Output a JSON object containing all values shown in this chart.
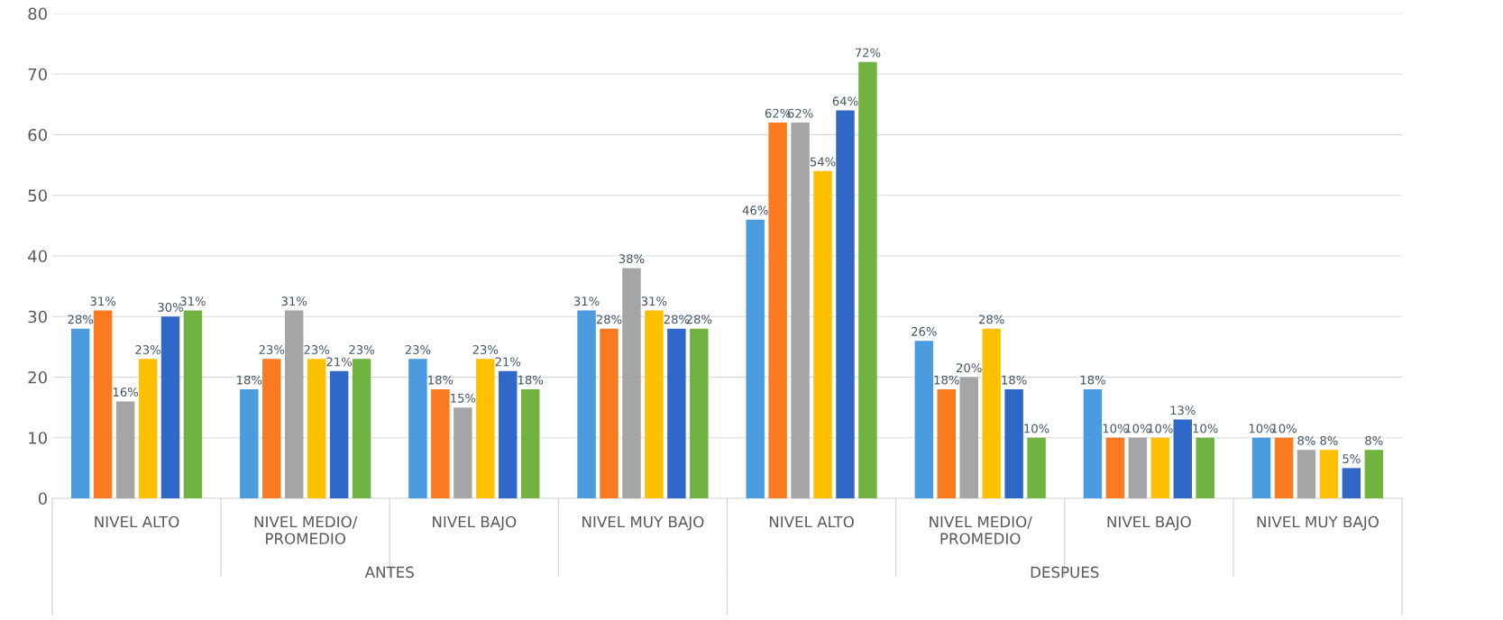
{
  "chart_data": {
    "type": "bar",
    "categories": [
      "NIVEL ALTO",
      "NIVEL MEDIO/\nPROMEDIO",
      "NIVEL BAJO",
      "NIVEL MUY BAJO",
      "NIVEL ALTO",
      "NIVEL MEDIO/\nPROMEDIO",
      "NIVEL BAJO",
      "NIVEL MUY BAJO"
    ],
    "series": [
      {
        "color": "#4a9be0",
        "values": [
          28,
          18,
          23,
          31,
          46,
          26,
          18,
          10
        ],
        "value_labels": [
          "28%",
          "18%",
          "23%",
          "31%",
          "46%",
          "26%",
          "18%",
          "10%"
        ]
      },
      {
        "color": "#f97a1f",
        "values": [
          31,
          23,
          18,
          28,
          62,
          18,
          10,
          10
        ],
        "value_labels": [
          "31%",
          "23%",
          "18%",
          "28%",
          "62%",
          "18%",
          "10%",
          "10%"
        ]
      },
      {
        "color": "#a5a5a5",
        "values": [
          16,
          31,
          15,
          38,
          62,
          20,
          10,
          8
        ],
        "value_labels": [
          "16%",
          "31%",
          "15%",
          "38%",
          "62%",
          "20%",
          "10%",
          "8%"
        ]
      },
      {
        "color": "#ffc000",
        "values": [
          23,
          23,
          23,
          31,
          54,
          28,
          10,
          8
        ],
        "value_labels": [
          "23%",
          "23%",
          "23%",
          "31%",
          "54%",
          "28%",
          "10%",
          "8%"
        ]
      },
      {
        "color": "#3068c8",
        "values": [
          30,
          21,
          21,
          28,
          64,
          18,
          13,
          5
        ],
        "value_labels": [
          "30%",
          "21%",
          "21%",
          "28%",
          "64%",
          "18%",
          "13%",
          "5%"
        ]
      },
      {
        "color": "#70b340",
        "values": [
          31,
          23,
          18,
          28,
          72,
          10,
          10,
          8
        ],
        "value_labels": [
          "31%",
          "23%",
          "18%",
          "28%",
          "72%",
          "10%",
          "10%",
          "8%"
        ]
      }
    ],
    "annotations": [
      "ANTES",
      "DESPUES"
    ],
    "ylim": [
      0,
      80
    ],
    "yticks": [
      0,
      10,
      20,
      30,
      40,
      50,
      60,
      70,
      80
    ],
    "grid": "y",
    "legend": false
  }
}
